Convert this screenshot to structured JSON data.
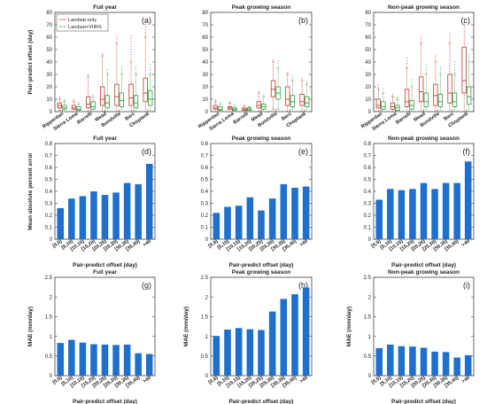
{
  "figure": {
    "colors": {
      "landsat_only": "#c0392b",
      "landsat_viirs": "#2e9e3e",
      "bar": "#1f6fcf",
      "axis": "#444444",
      "text": "#222222"
    }
  },
  "chart_data": [
    {
      "panel": "(a)",
      "type": "box",
      "title": "Full year",
      "ylabel": "Pair-predict offset (day)",
      "xlabel": "",
      "ylim": [
        0,
        80
      ],
      "yticks": [
        0,
        10,
        20,
        30,
        40,
        50,
        60,
        70,
        80
      ],
      "categories": [
        "Ripperdan",
        "Sierra Loma",
        "Barrelli",
        "Mead",
        "Bondville",
        "Barc",
        "Choptank"
      ],
      "legend": [
        "Landsat-only",
        "Landsat+VIIRS"
      ],
      "legend_position": "top-left",
      "series": [
        {
          "name": "Landsat-only",
          "q1": [
            3,
            2,
            3,
            5,
            5,
            5,
            8
          ],
          "median": [
            5,
            3,
            6,
            10,
            12,
            11,
            15
          ],
          "q3": [
            7,
            5,
            12,
            20,
            22,
            22,
            27
          ],
          "whisker_low": [
            1,
            0,
            0,
            0,
            0,
            0,
            0
          ],
          "whisker_high": [
            10,
            8,
            28,
            45,
            55,
            40,
            60
          ],
          "outliers_max": [
            12,
            10,
            30,
            47,
            62,
            62,
            73
          ]
        },
        {
          "name": "Landsat+VIIRS",
          "q1": [
            2,
            1,
            2,
            3,
            4,
            3,
            5
          ],
          "median": [
            3,
            2,
            4,
            7,
            9,
            7,
            10
          ],
          "q3": [
            5,
            4,
            8,
            13,
            15,
            13,
            17
          ],
          "whisker_low": [
            0,
            0,
            0,
            0,
            0,
            0,
            0
          ],
          "whisker_high": [
            8,
            6,
            12,
            30,
            30,
            30,
            30
          ],
          "outliers_max": [
            11,
            9,
            15,
            35,
            38,
            37,
            40
          ]
        }
      ]
    },
    {
      "panel": "(b)",
      "type": "box",
      "title": "Peak growing season",
      "ylabel": "",
      "xlabel": "",
      "ylim": [
        0,
        80
      ],
      "yticks": [
        0,
        10,
        20,
        30,
        40,
        50,
        60,
        70,
        80
      ],
      "categories": [
        "Ripperdan",
        "Sierra Loma",
        "Barrelli",
        "Mead",
        "Bondville",
        "Barc",
        "Choptank"
      ],
      "series": [
        {
          "name": "Landsat-only",
          "q1": [
            2,
            2,
            1,
            3,
            12,
            5,
            5
          ],
          "median": [
            3,
            3,
            2,
            5,
            18,
            10,
            8
          ],
          "q3": [
            5,
            4,
            3,
            8,
            25,
            20,
            14
          ],
          "whisker_low": [
            0,
            0,
            0,
            0,
            2,
            0,
            0
          ],
          "whisker_high": [
            8,
            7,
            5,
            15,
            40,
            30,
            25
          ],
          "outliers_max": [
            10,
            9,
            6,
            18,
            43,
            33,
            27
          ]
        },
        {
          "name": "Landsat+VIIRS",
          "q1": [
            1,
            1,
            1,
            2,
            10,
            4,
            4
          ],
          "median": [
            2,
            2,
            2,
            4,
            15,
            8,
            7
          ],
          "q3": [
            4,
            3,
            3,
            6,
            20,
            13,
            12
          ],
          "whisker_low": [
            0,
            0,
            0,
            0,
            2,
            0,
            0
          ],
          "whisker_high": [
            6,
            5,
            4,
            12,
            35,
            25,
            22
          ],
          "outliers_max": [
            8,
            6,
            5,
            14,
            42,
            30,
            25
          ]
        }
      ]
    },
    {
      "panel": "(c)",
      "type": "box",
      "title": "Non-peak growing season",
      "ylabel": "",
      "xlabel": "",
      "ylim": [
        0,
        80
      ],
      "yticks": [
        0,
        10,
        20,
        30,
        40,
        50,
        60,
        70,
        80
      ],
      "categories": [
        "Ripperdan",
        "Sierra Loma",
        "Barrelli",
        "Mead",
        "Bondville",
        "Barc",
        "Choptank"
      ],
      "series": [
        {
          "name": "Landsat-only",
          "q1": [
            3,
            2,
            4,
            8,
            5,
            7,
            15
          ],
          "median": [
            5,
            4,
            8,
            16,
            13,
            15,
            25
          ],
          "q3": [
            10,
            7,
            18,
            28,
            22,
            30,
            52
          ],
          "whisker_low": [
            0,
            0,
            0,
            0,
            0,
            0,
            0
          ],
          "whisker_high": [
            18,
            12,
            35,
            55,
            40,
            55,
            70
          ],
          "outliers_max": [
            22,
            15,
            45,
            63,
            48,
            65,
            73
          ]
        },
        {
          "name": "Landsat+VIIRS",
          "q1": [
            2,
            1,
            2,
            4,
            4,
            4,
            6
          ],
          "median": [
            4,
            3,
            5,
            8,
            8,
            8,
            12
          ],
          "q3": [
            8,
            5,
            9,
            15,
            14,
            15,
            20
          ],
          "whisker_low": [
            0,
            0,
            0,
            0,
            0,
            0,
            0
          ],
          "whisker_high": [
            15,
            10,
            20,
            30,
            30,
            30,
            40
          ],
          "outliers_max": [
            20,
            12,
            28,
            40,
            38,
            42,
            47
          ]
        }
      ]
    },
    {
      "panel": "(d)",
      "type": "bar",
      "title": "Full year",
      "ylabel": "Mean absolute percent error",
      "xlabel": "Pair-predict offset (day)",
      "ylim": [
        0,
        0.8
      ],
      "yticks": [
        0,
        0.1,
        0.2,
        0.3,
        0.4,
        0.5,
        0.6,
        0.7,
        0.8
      ],
      "categories": [
        "[0,5)",
        "[5,10)",
        "[10,15)",
        "[15,20)",
        "[20,25)",
        "[25,30)",
        "[30,35)",
        "[35,40)",
        ">40"
      ],
      "values": [
        0.26,
        0.34,
        0.36,
        0.4,
        0.37,
        0.39,
        0.47,
        0.46,
        0.63
      ]
    },
    {
      "panel": "(e)",
      "type": "bar",
      "title": "Peak growing season",
      "ylabel": "",
      "xlabel": "Pair-predict offset (day)",
      "ylim": [
        0,
        0.8
      ],
      "yticks": [
        0,
        0.1,
        0.2,
        0.3,
        0.4,
        0.5,
        0.6,
        0.7,
        0.8
      ],
      "categories": [
        "[0,5)",
        "[5,10)",
        "[10,15)",
        "[15,20)",
        "[20,25)",
        "[25,30)",
        "[30,35)",
        "[35,40)",
        ">40"
      ],
      "values": [
        0.22,
        0.27,
        0.28,
        0.35,
        0.24,
        0.34,
        0.46,
        0.43,
        0.44
      ]
    },
    {
      "panel": "(f)",
      "type": "bar",
      "title": "Non-peak growing season",
      "ylabel": "",
      "xlabel": "Pair-predict offset (day)",
      "ylim": [
        0,
        0.8
      ],
      "yticks": [
        0,
        0.1,
        0.2,
        0.3,
        0.4,
        0.5,
        0.6,
        0.7,
        0.8
      ],
      "categories": [
        "[0,5)",
        "[5,10)",
        "[10,15)",
        "[15,20)",
        "[20,25)",
        "[25,30)",
        "[30,35)",
        "[35,40)",
        ">40"
      ],
      "values": [
        0.33,
        0.42,
        0.41,
        0.42,
        0.47,
        0.42,
        0.47,
        0.47,
        0.65
      ]
    },
    {
      "panel": "(g)",
      "type": "bar",
      "title": "Full year",
      "ylabel": "MAE (mm/day)",
      "xlabel": "Pair-predict offset (day)",
      "ylim": [
        0,
        2.5
      ],
      "yticks": [
        0,
        0.5,
        1,
        1.5,
        2,
        2.5
      ],
      "categories": [
        "[0,5)",
        "[5,10)",
        "[10,15)",
        "[15,20)",
        "[20,25)",
        "[25,30)",
        "[30,35)",
        "[35,40)",
        ">40"
      ],
      "values": [
        0.83,
        0.91,
        0.84,
        0.8,
        0.79,
        0.78,
        0.79,
        0.57,
        0.55
      ]
    },
    {
      "panel": "(h)",
      "type": "bar",
      "title": "Peak growing season",
      "ylabel": "MAE (mm/day)",
      "xlabel": "Pair-predict offset (day)",
      "ylim": [
        0,
        2.5
      ],
      "yticks": [
        0,
        0.5,
        1,
        1.5,
        2,
        2.5
      ],
      "categories": [
        "[0,5)",
        "[5,10)",
        "[10,15)",
        "[15,20)",
        "[20,25)",
        "[25,30)",
        "[30,35)",
        "[35,40)",
        ">40"
      ],
      "values": [
        1.01,
        1.17,
        1.21,
        1.18,
        1.16,
        1.63,
        1.95,
        2.07,
        2.24
      ]
    },
    {
      "panel": "(i)",
      "type": "bar",
      "title": "Non-peak growing season",
      "ylabel": "MAE (mm/day)",
      "xlabel": "Pair-predict offset (day)",
      "ylim": [
        0,
        2.5
      ],
      "yticks": [
        0,
        0.5,
        1,
        1.5,
        2,
        2.5
      ],
      "categories": [
        "[0,5)",
        "[5,10)",
        "[10,15)",
        "[15,20)",
        "[20,25)",
        "[25,30)",
        "[30,35)",
        "[35,40)",
        ">40"
      ],
      "values": [
        0.7,
        0.79,
        0.75,
        0.74,
        0.71,
        0.61,
        0.6,
        0.46,
        0.52
      ]
    }
  ]
}
